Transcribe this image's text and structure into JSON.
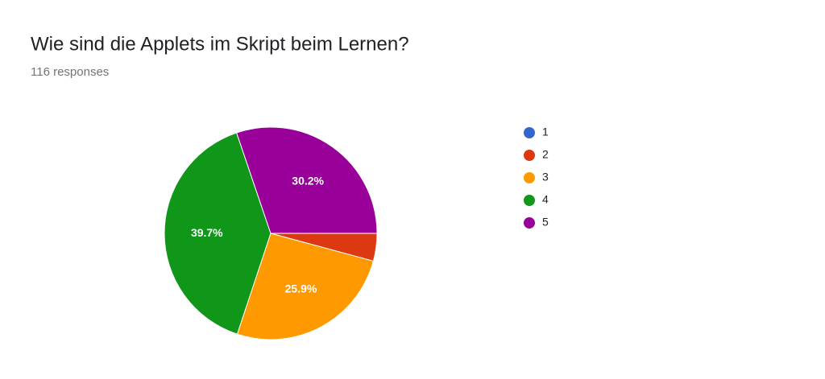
{
  "chart_data": {
    "type": "pie",
    "title": "Wie sind die Applets im Skript beim Lernen?",
    "subtitle": "116 responses",
    "categories": [
      "1",
      "2",
      "3",
      "4",
      "5"
    ],
    "values": [
      0,
      4.2,
      25.9,
      39.7,
      30.2
    ],
    "value_labels": [
      null,
      null,
      "25.9%",
      "39.7%",
      "30.2%"
    ],
    "colors": [
      "#3366cc",
      "#dc3912",
      "#ff9900",
      "#109618",
      "#990099"
    ],
    "legend": "right"
  }
}
